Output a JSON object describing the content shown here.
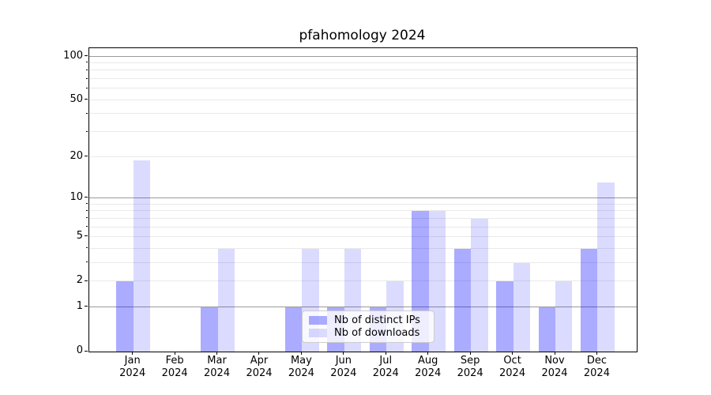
{
  "chart_data": {
    "type": "bar",
    "title": "pfahomology 2024",
    "categories": [
      "Jan",
      "Feb",
      "Mar",
      "Apr",
      "May",
      "Jun",
      "Jul",
      "Aug",
      "Sep",
      "Oct",
      "Nov",
      "Dec"
    ],
    "x_second_line": "2024",
    "series": [
      {
        "name": "Nb of distinct IPs",
        "color": "rgba(0,0,255,0.33)",
        "values": [
          2,
          0,
          1,
          0,
          1,
          1,
          1,
          8,
          4,
          2,
          1,
          4
        ]
      },
      {
        "name": "Nb of downloads",
        "color": "rgba(0,0,255,0.14)",
        "values": [
          19,
          0,
          4,
          0,
          4,
          4,
          2,
          8,
          7,
          3,
          2,
          13
        ]
      }
    ],
    "yscale": "log(value+1)",
    "ylim": [
      0,
      114
    ],
    "y_ticks": [
      0,
      1,
      2,
      5,
      10,
      20,
      50,
      100
    ],
    "y_minor_ticks": [
      3,
      4,
      6,
      7,
      8,
      9,
      30,
      40,
      60,
      70,
      80,
      90
    ],
    "grid": {
      "major": [
        1,
        10,
        100
      ],
      "minor": [
        2,
        3,
        4,
        5,
        6,
        7,
        8,
        9,
        20,
        30,
        40,
        50,
        60,
        70,
        80,
        90
      ],
      "major_color": "#9b9b9b",
      "minor_color": "#e9e9e9"
    },
    "legend_position": "lower center",
    "xlabel": "",
    "ylabel": ""
  }
}
